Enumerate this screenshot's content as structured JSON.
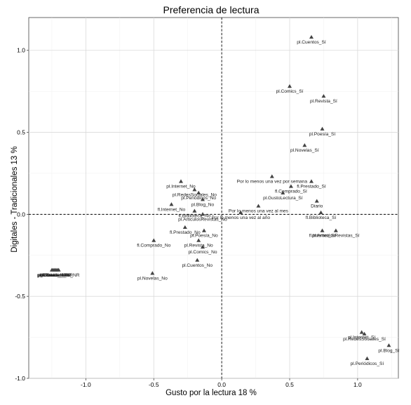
{
  "chart_data": {
    "type": "scatter",
    "title": "Preferencia de lectura",
    "xlabel": "Gusto por la lectura 18 %",
    "ylabel": "Digitales - Tradicionales 13 %",
    "xlim": [
      -1.42,
      1.3
    ],
    "ylim": [
      -1.0,
      1.2
    ],
    "x_ticks": [
      -1.0,
      -0.5,
      0.0,
      0.5,
      1.0
    ],
    "x_tick_labels": [
      "-1.0",
      "-0.5",
      "0.0",
      "0.5",
      "1.0"
    ],
    "y_ticks": [
      -1.0,
      -0.5,
      0.0,
      0.5,
      1.0
    ],
    "y_tick_labels": [
      "-1.0",
      "-0.5",
      "0.0",
      "0.5",
      "1.0"
    ],
    "grid": true,
    "reference_lines": {
      "x": 0,
      "y": 0
    },
    "marker": "triangle",
    "points": [
      {
        "label": "pl.Cuentos_Sí",
        "x": 0.66,
        "y": 1.08
      },
      {
        "label": "pl.Comics_Sí",
        "x": 0.5,
        "y": 0.78
      },
      {
        "label": "pl.Revista_Sí",
        "x": 0.75,
        "y": 0.72
      },
      {
        "label": "pl.Poesía_Sí",
        "x": 0.74,
        "y": 0.52
      },
      {
        "label": "pl.Novelas_Sí",
        "x": 0.61,
        "y": 0.42
      },
      {
        "label": "Por lo menos una vez por semana",
        "x": 0.37,
        "y": 0.23
      },
      {
        "label": "fl.Prestado_Sí",
        "x": 0.66,
        "y": 0.2
      },
      {
        "label": "fl.Comprado_Sí",
        "x": 0.51,
        "y": 0.17
      },
      {
        "label": "pl.GustoLectura_Sí",
        "x": 0.45,
        "y": 0.13
      },
      {
        "label": "Diario",
        "x": 0.7,
        "y": 0.08
      },
      {
        "label": "fl.Biblioteca_Sí",
        "x": 0.73,
        "y": 0.01
      },
      {
        "label": "Por lo menos una vez al mes",
        "x": 0.27,
        "y": 0.05
      },
      {
        "label": "Por lo menos una vez al año",
        "x": 0.14,
        "y": 0.01
      },
      {
        "label": "fl.Internet_Sí",
        "x": 0.74,
        "y": -0.1
      },
      {
        "label": "pl.ArticulosRevistas_Sí",
        "x": 0.84,
        "y": -0.1
      },
      {
        "label": "pl.Internet_No",
        "x": -0.3,
        "y": 0.2
      },
      {
        "label": "pl.RedesSociales_No",
        "x": -0.2,
        "y": 0.15
      },
      {
        "label": "pl.Periódicos_No",
        "x": -0.17,
        "y": 0.13
      },
      {
        "label": "fl.Internet_No",
        "x": -0.37,
        "y": 0.06
      },
      {
        "label": "pl.Blog_No",
        "x": -0.14,
        "y": 0.09
      },
      {
        "label": "fl.Biblioteca_No",
        "x": -0.2,
        "y": 0.02
      },
      {
        "label": "pl.ArticulosRevistas_No",
        "x": -0.14,
        "y": 0.0
      },
      {
        "label": "fl.Prestado_No",
        "x": -0.27,
        "y": -0.08
      },
      {
        "label": "pl.Poesía_No",
        "x": -0.13,
        "y": -0.1
      },
      {
        "label": "fl.Comprado_No",
        "x": -0.5,
        "y": -0.16
      },
      {
        "label": "pl.Revista_No",
        "x": -0.17,
        "y": -0.16
      },
      {
        "label": "pl.Comics_No",
        "x": -0.14,
        "y": -0.2
      },
      {
        "label": "pl.Cuentos_No",
        "x": -0.18,
        "y": -0.28
      },
      {
        "label": "pl.Novelas_No",
        "x": -0.51,
        "y": -0.36
      },
      {
        "label": "pl.GustoLectura_NR",
        "x": -1.2,
        "y": -0.34
      },
      {
        "label": "pl.Cuentos_NR",
        "x": -1.21,
        "y": -0.34
      },
      {
        "label": "pl.Novelas_NR",
        "x": -1.22,
        "y": -0.34
      },
      {
        "label": "pl.Poesía_NR",
        "x": -1.23,
        "y": -0.34
      },
      {
        "label": "pl.Comics_NR",
        "x": -1.24,
        "y": -0.34
      },
      {
        "label": "pl.Revista_NR",
        "x": -1.25,
        "y": -0.34
      },
      {
        "label": "pl.Internet_Sí",
        "x": 1.03,
        "y": -0.72
      },
      {
        "label": "pl.RedesSociales_Sí",
        "x": 1.05,
        "y": -0.73
      },
      {
        "label": "pl.Blog_Sí",
        "x": 1.23,
        "y": -0.8
      },
      {
        "label": "pl.Periódicos_Sí",
        "x": 1.07,
        "y": -0.88
      }
    ]
  }
}
